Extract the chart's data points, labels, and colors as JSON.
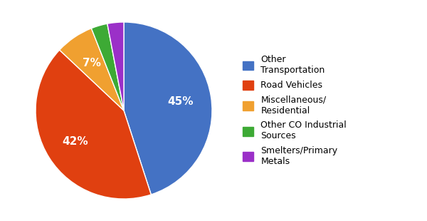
{
  "labels": [
    "Other\nTransportation",
    "Road Vehicles",
    "Miscellaneous/\nResidential",
    "Other CO Industrial\nSources",
    "Smelters/Primary\nMetals"
  ],
  "values": [
    45,
    42,
    7,
    3,
    3
  ],
  "colors": [
    "#4472C4",
    "#E04010",
    "#F0A030",
    "#3DAA35",
    "#9B30C8"
  ],
  "startangle": 90,
  "figsize": [
    6.0,
    3.1
  ],
  "dpi": 100,
  "background_color": "#ffffff",
  "pct_fontsize": 11,
  "legend_fontsize": 9
}
